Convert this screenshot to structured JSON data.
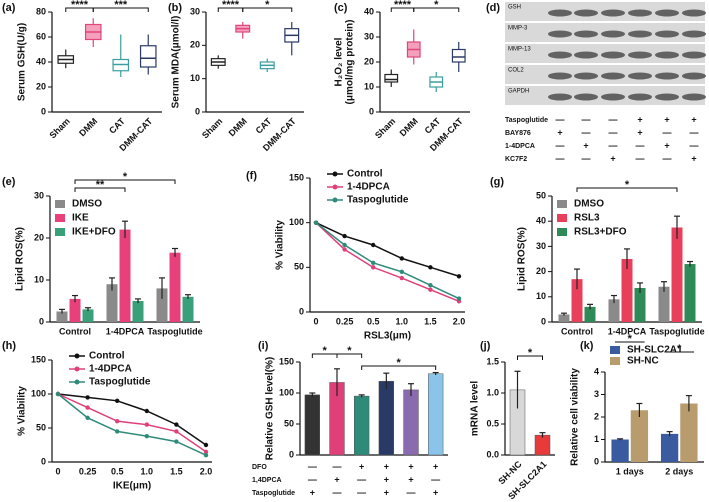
{
  "chart_data": [
    {
      "type": "box",
      "label": "(a)",
      "ylabel": [
        "Serum GSH(U/g)"
      ],
      "categories": [
        "Sham",
        "DMM",
        "CAT",
        "DMM-CAT"
      ],
      "boxes": [
        [
          35,
          39,
          42,
          45,
          50
        ],
        [
          52,
          58,
          64,
          70,
          75
        ],
        [
          28,
          33,
          38,
          42,
          62
        ],
        [
          30,
          36,
          43,
          53,
          62
        ]
      ],
      "colors": [
        "#222222",
        "#e0457b",
        "#3a9e9e",
        "#2a3a66"
      ],
      "ylim": [
        0,
        80
      ],
      "yticks": [
        0,
        20,
        40,
        60,
        80
      ],
      "annotations": [
        "****",
        "***"
      ]
    },
    {
      "type": "box",
      "label": "(b)",
      "ylabel": [
        "Serum MDA(μmol/l)"
      ],
      "categories": [
        "Sham",
        "DMM",
        "CAT",
        "DMM-CAT"
      ],
      "boxes": [
        [
          13,
          14,
          15,
          16,
          17
        ],
        [
          22,
          24,
          25,
          26,
          27
        ],
        [
          12,
          13,
          14,
          15,
          16
        ],
        [
          17,
          21,
          23,
          25,
          27
        ]
      ],
      "colors": [
        "#222222",
        "#e0457b",
        "#3a9e9e",
        "#2a3a66"
      ],
      "ylim": [
        0,
        30
      ],
      "yticks": [
        0,
        10,
        20,
        30
      ],
      "annotations": [
        "****",
        "*",
        "****"
      ]
    },
    {
      "type": "box",
      "label": "(c)",
      "ylabel": [
        "H₂O₂ level",
        "(μmol/mg protein)"
      ],
      "categories": [
        "Sham",
        "DMM",
        "CAT",
        "DMM-CAT"
      ],
      "boxes": [
        [
          10,
          12,
          13,
          15,
          17
        ],
        [
          19,
          22,
          25,
          28,
          33
        ],
        [
          8,
          10,
          12,
          14,
          16
        ],
        [
          16,
          20,
          22,
          25,
          28
        ]
      ],
      "colors": [
        "#222222",
        "#e0457b",
        "#3a9e9e",
        "#2a3a66"
      ],
      "ylim": [
        0,
        40
      ],
      "yticks": [
        0,
        10,
        20,
        30,
        40
      ],
      "annotations": [
        "****",
        "*",
        "****"
      ]
    },
    {
      "type": "blot",
      "label": "(d)",
      "rows": [
        "GSH",
        "MMP-3",
        "MMP-13",
        "COL2",
        "GAPDH"
      ],
      "treatments": [
        {
          "name": "Taspoglutide",
          "signs": [
            "—",
            "—",
            "—",
            "+",
            "+",
            "+"
          ]
        },
        {
          "name": "BAY876",
          "signs": [
            "+",
            "—",
            "—",
            "+",
            "—",
            "—"
          ]
        },
        {
          "name": "1-4DPCA",
          "signs": [
            "—",
            "+",
            "—",
            "—",
            "+",
            "—"
          ]
        },
        {
          "name": "KC7F2",
          "signs": [
            "—",
            "—",
            "+",
            "—",
            "—",
            "+"
          ]
        }
      ]
    },
    {
      "type": "bar",
      "label": "(e)",
      "ylabel": [
        "Lipid ROS(%)"
      ],
      "categories": [
        "Control",
        "1-4DPCA",
        "Taspoglutide"
      ],
      "series": [
        {
          "name": "DMSO",
          "color": "#8a8a8a",
          "values": [
            2.5,
            9,
            8
          ],
          "errors": [
            0.5,
            1.5,
            2.5
          ]
        },
        {
          "name": "IKE",
          "color": "#e8407a",
          "values": [
            5.5,
            22,
            16.5
          ],
          "errors": [
            0.8,
            2,
            1
          ]
        },
        {
          "name": "IKE+DFO",
          "color": "#3aa07a",
          "values": [
            3,
            5,
            6
          ],
          "errors": [
            0.4,
            0.5,
            0.5
          ]
        }
      ],
      "ylim": [
        0,
        30
      ],
      "yticks": [
        0,
        10,
        20,
        30
      ],
      "legend": "upper left",
      "annotations": [
        "**",
        "*"
      ]
    },
    {
      "type": "line",
      "label": "(f)",
      "ylabel": [
        "% Viability"
      ],
      "xlabel": "RSL3(μm)",
      "categories": [
        "0",
        "0.25",
        "0.5",
        "1.0",
        "1.5",
        "2.0"
      ],
      "series": [
        {
          "name": "Control",
          "color": "#111111",
          "values": [
            100,
            85,
            75,
            60,
            50,
            40
          ]
        },
        {
          "name": "1-4DPCA",
          "color": "#e0407a",
          "values": [
            100,
            70,
            50,
            38,
            25,
            12
          ]
        },
        {
          "name": "Taspoglutide",
          "color": "#2e8b7a",
          "values": [
            100,
            75,
            55,
            45,
            30,
            15
          ]
        }
      ],
      "ylim": [
        0,
        150
      ],
      "yticks": [
        0,
        50,
        100,
        150
      ],
      "legend": "upper center"
    },
    {
      "type": "bar",
      "label": "(g)",
      "ylabel": [
        "Lipid ROS(%)"
      ],
      "categories": [
        "Control",
        "1-4DPCA",
        "Taspoglutide"
      ],
      "series": [
        {
          "name": "DMSO",
          "color": "#8a8a8a",
          "values": [
            3,
            9,
            14
          ],
          "errors": [
            0.5,
            1.5,
            2
          ]
        },
        {
          "name": "RSL3",
          "color": "#e8405a",
          "values": [
            17,
            25,
            37.5
          ],
          "errors": [
            4,
            4,
            4.5
          ]
        },
        {
          "name": "RSL3+DFO",
          "color": "#2e8b57",
          "values": [
            6,
            13.5,
            23
          ],
          "errors": [
            1,
            2,
            1
          ]
        }
      ],
      "ylim": [
        0,
        50
      ],
      "yticks": [
        0,
        10,
        20,
        30,
        40,
        50
      ],
      "legend": "upper left",
      "annotations": [
        "*"
      ]
    },
    {
      "type": "line",
      "label": "(h)",
      "ylabel": [
        "% Viability"
      ],
      "xlabel": "IKE(μm)",
      "categories": [
        "0",
        "0.25",
        "0.5",
        "1.0",
        "1.5",
        "2.0"
      ],
      "series": [
        {
          "name": "Control",
          "color": "#111111",
          "values": [
            100,
            95,
            90,
            75,
            55,
            25
          ]
        },
        {
          "name": "1-4DPCA",
          "color": "#e0407a",
          "values": [
            100,
            80,
            60,
            55,
            45,
            15
          ]
        },
        {
          "name": "Taspoglutide",
          "color": "#2e8b7a",
          "values": [
            100,
            65,
            45,
            38,
            30,
            10
          ]
        }
      ],
      "ylim": [
        0,
        150
      ],
      "yticks": [
        0,
        50,
        100,
        150
      ],
      "legend": "upper center"
    },
    {
      "type": "bar",
      "label": "(i)",
      "ylabel": [
        "Relative GSH level(%)"
      ],
      "categories": [
        null,
        null,
        null,
        null,
        null,
        null
      ],
      "values": [
        97,
        117,
        95,
        119,
        105,
        131
      ],
      "errors": [
        3,
        22,
        2,
        13,
        10,
        2
      ],
      "colors": [
        "#333333",
        "#e0407a",
        "#2e8b7a",
        "#2a3a66",
        "#8a6bb0",
        "#8ac4e8"
      ],
      "ylim": [
        0,
        150
      ],
      "yticks": [
        0,
        50,
        100,
        150
      ],
      "annotations": [
        "*",
        "*",
        "*"
      ],
      "treatments": [
        {
          "name": "DFO",
          "signs": [
            "—",
            "—",
            "+",
            "+",
            "+",
            "+"
          ]
        },
        {
          "name": "1,4DPCA",
          "signs": [
            "—",
            "+",
            "—",
            "+",
            "+",
            "—"
          ]
        },
        {
          "name": "Taspoglutide",
          "signs": [
            "+",
            "—",
            "—",
            "+",
            "—",
            "+"
          ]
        }
      ]
    },
    {
      "type": "bar",
      "label": "(j)",
      "ylabel": [
        "mRNA level"
      ],
      "categories": [
        "SH-NC",
        "SH-SLC2A1"
      ],
      "values": [
        1.05,
        0.32
      ],
      "errors": [
        0.3,
        0.04
      ],
      "colors": [
        "#d8d8d8",
        "#e83a3a"
      ],
      "ylim": [
        0,
        1.5
      ],
      "yticks": [
        {
          "value": 0,
          "label": "0.0"
        },
        0.5,
        {
          "value": 1,
          "label": "1.0"
        },
        1.5
      ],
      "annotations": [
        "*"
      ]
    },
    {
      "type": "bar",
      "label": "(k)",
      "ylabel": [
        "Relative cell viability"
      ],
      "categories": [
        "1 days",
        "2 days"
      ],
      "series": [
        {
          "name": "SH-SLC2A1",
          "color": "#3b5ba0",
          "values": [
            1.0,
            1.25
          ],
          "errors": [
            0.03,
            0.1
          ]
        },
        {
          "name": "SH-NC",
          "color": "#b89c6e",
          "values": [
            2.3,
            2.6
          ],
          "errors": [
            0.3,
            0.35
          ]
        }
      ],
      "ylim": [
        0,
        4
      ],
      "yticks": [
        0,
        1,
        2,
        3,
        4
      ],
      "legend": "upper center",
      "annotations": [
        "*",
        "*"
      ]
    }
  ]
}
